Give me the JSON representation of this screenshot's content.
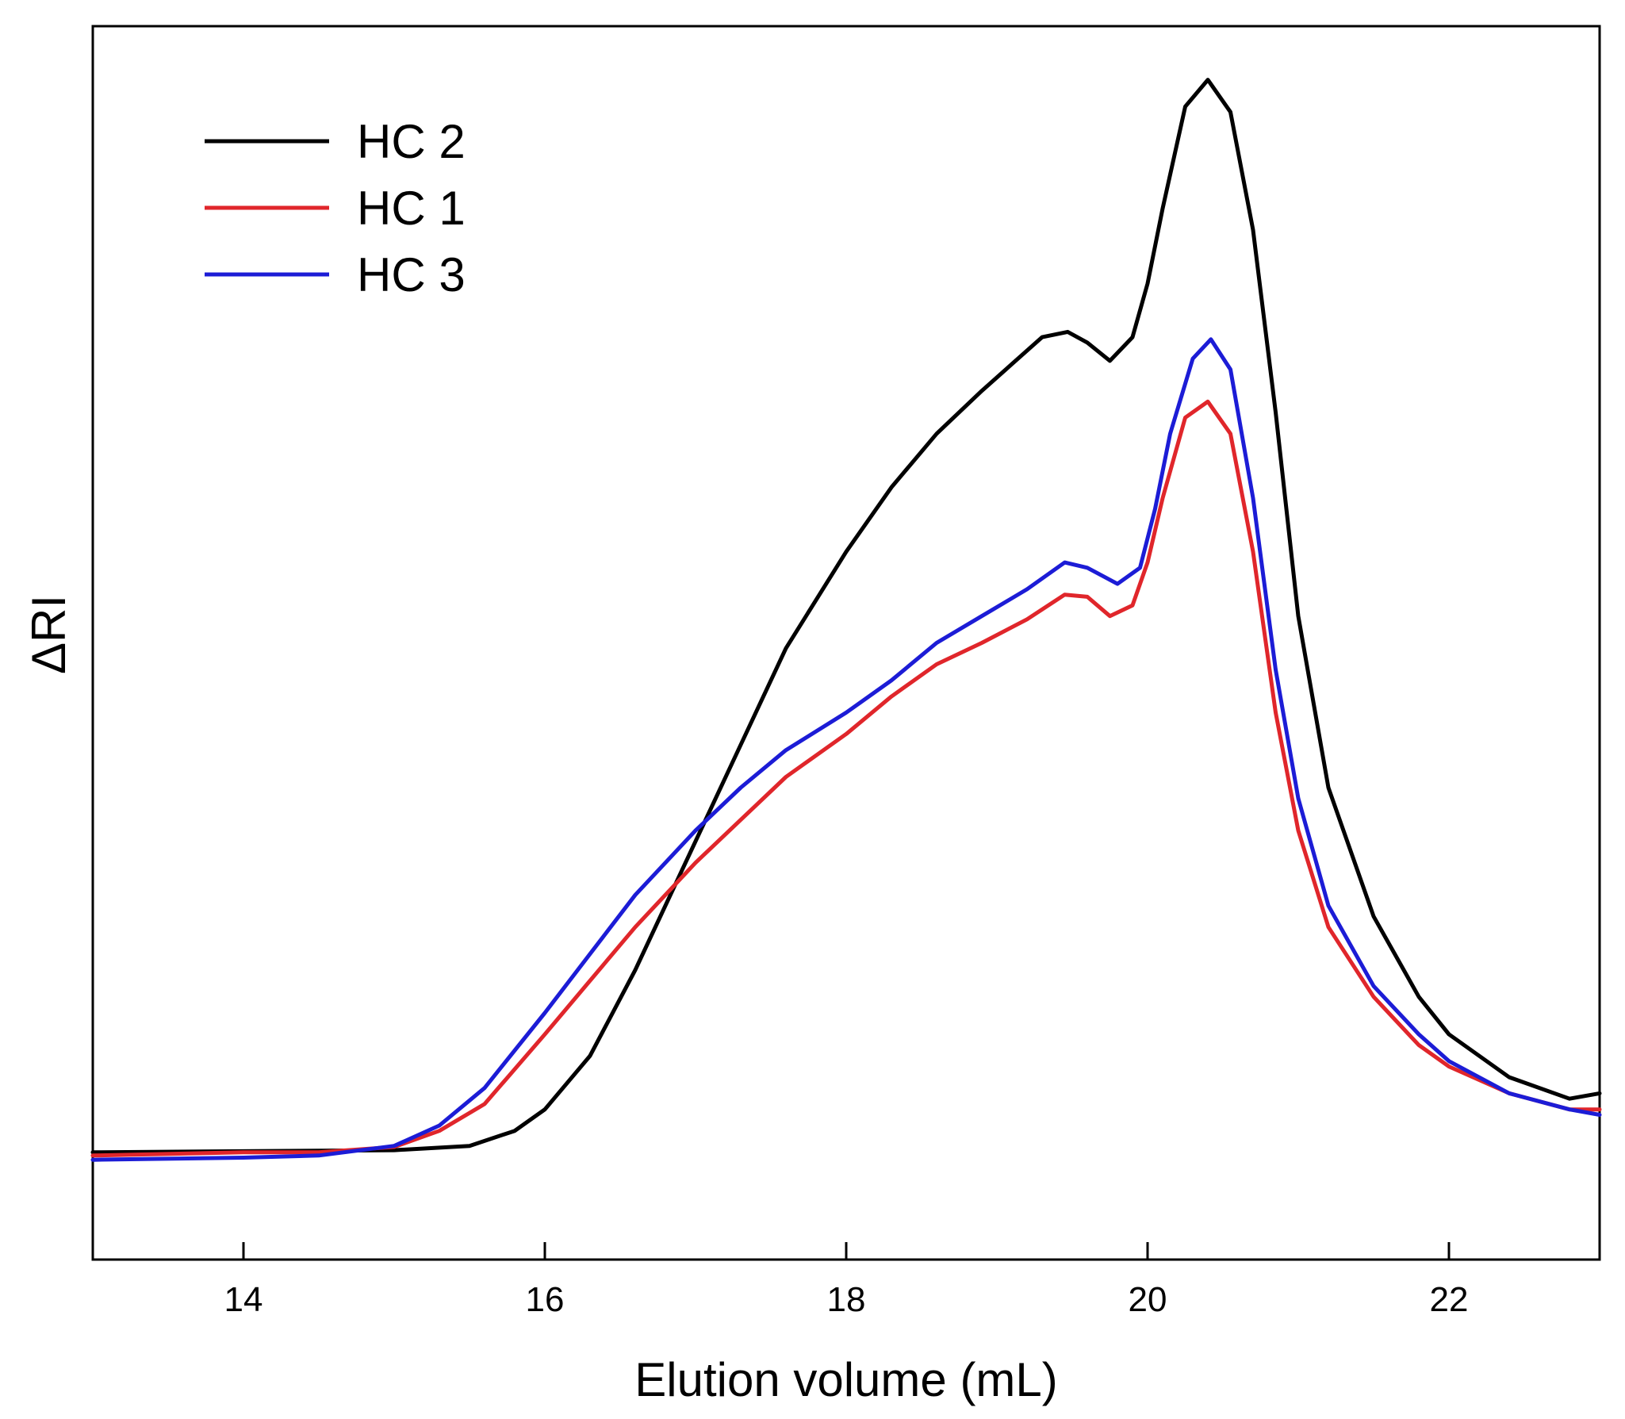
{
  "chart_data": {
    "type": "line",
    "title": "",
    "xlabel": "Elution volume (mL)",
    "ylabel": "ΔRI",
    "xlim": [
      13,
      23
    ],
    "ylim": [
      -0.1,
      1.05
    ],
    "xticks": [
      14,
      16,
      18,
      20,
      22
    ],
    "xtick_labels": [
      "14",
      "16",
      "18",
      "20",
      "22"
    ],
    "yticks": [],
    "grid": false,
    "legend_position": "top-left",
    "series": [
      {
        "name": "HC 2",
        "color": "#000000",
        "points": [
          [
            13.0,
            0.0
          ],
          [
            14.0,
            0.001
          ],
          [
            15.0,
            0.002
          ],
          [
            15.5,
            0.006
          ],
          [
            15.8,
            0.02
          ],
          [
            16.0,
            0.04
          ],
          [
            16.3,
            0.09
          ],
          [
            16.6,
            0.17
          ],
          [
            17.0,
            0.29
          ],
          [
            17.3,
            0.38
          ],
          [
            17.6,
            0.47
          ],
          [
            18.0,
            0.56
          ],
          [
            18.3,
            0.62
          ],
          [
            18.6,
            0.67
          ],
          [
            18.9,
            0.71
          ],
          [
            19.1,
            0.735
          ],
          [
            19.3,
            0.76
          ],
          [
            19.47,
            0.765
          ],
          [
            19.6,
            0.755
          ],
          [
            19.75,
            0.738
          ],
          [
            19.9,
            0.76
          ],
          [
            20.0,
            0.81
          ],
          [
            20.1,
            0.88
          ],
          [
            20.25,
            0.975
          ],
          [
            20.4,
            1.0
          ],
          [
            20.55,
            0.97
          ],
          [
            20.7,
            0.86
          ],
          [
            20.85,
            0.69
          ],
          [
            21.0,
            0.5
          ],
          [
            21.2,
            0.34
          ],
          [
            21.5,
            0.22
          ],
          [
            21.8,
            0.145
          ],
          [
            22.0,
            0.11
          ],
          [
            22.4,
            0.07
          ],
          [
            22.8,
            0.05
          ],
          [
            23.0,
            0.055
          ]
        ]
      },
      {
        "name": "HC 1",
        "color": "#e0262b",
        "points": [
          [
            13.0,
            -0.003
          ],
          [
            14.0,
            0.0
          ],
          [
            14.5,
            0.0
          ],
          [
            15.0,
            0.005
          ],
          [
            15.3,
            0.02
          ],
          [
            15.6,
            0.045
          ],
          [
            16.0,
            0.11
          ],
          [
            16.3,
            0.16
          ],
          [
            16.6,
            0.21
          ],
          [
            17.0,
            0.27
          ],
          [
            17.3,
            0.31
          ],
          [
            17.6,
            0.35
          ],
          [
            18.0,
            0.39
          ],
          [
            18.3,
            0.425
          ],
          [
            18.6,
            0.455
          ],
          [
            18.9,
            0.475
          ],
          [
            19.2,
            0.497
          ],
          [
            19.45,
            0.52
          ],
          [
            19.6,
            0.518
          ],
          [
            19.75,
            0.5
          ],
          [
            19.9,
            0.51
          ],
          [
            20.0,
            0.55
          ],
          [
            20.1,
            0.61
          ],
          [
            20.25,
            0.685
          ],
          [
            20.4,
            0.7
          ],
          [
            20.55,
            0.67
          ],
          [
            20.7,
            0.56
          ],
          [
            20.85,
            0.41
          ],
          [
            21.0,
            0.3
          ],
          [
            21.2,
            0.21
          ],
          [
            21.5,
            0.145
          ],
          [
            21.8,
            0.1
          ],
          [
            22.0,
            0.08
          ],
          [
            22.4,
            0.055
          ],
          [
            22.8,
            0.04
          ],
          [
            23.0,
            0.04
          ]
        ]
      },
      {
        "name": "HC 3",
        "color": "#1c1cd6",
        "points": [
          [
            13.0,
            -0.007
          ],
          [
            14.0,
            -0.005
          ],
          [
            14.5,
            -0.003
          ],
          [
            15.0,
            0.006
          ],
          [
            15.3,
            0.025
          ],
          [
            15.6,
            0.06
          ],
          [
            16.0,
            0.13
          ],
          [
            16.3,
            0.185
          ],
          [
            16.6,
            0.24
          ],
          [
            17.0,
            0.3
          ],
          [
            17.3,
            0.34
          ],
          [
            17.6,
            0.375
          ],
          [
            18.0,
            0.41
          ],
          [
            18.3,
            0.44
          ],
          [
            18.6,
            0.475
          ],
          [
            18.9,
            0.5
          ],
          [
            19.2,
            0.525
          ],
          [
            19.45,
            0.55
          ],
          [
            19.6,
            0.545
          ],
          [
            19.8,
            0.53
          ],
          [
            19.95,
            0.545
          ],
          [
            20.05,
            0.6
          ],
          [
            20.15,
            0.67
          ],
          [
            20.3,
            0.74
          ],
          [
            20.42,
            0.758
          ],
          [
            20.55,
            0.73
          ],
          [
            20.7,
            0.61
          ],
          [
            20.85,
            0.45
          ],
          [
            21.0,
            0.33
          ],
          [
            21.2,
            0.23
          ],
          [
            21.5,
            0.155
          ],
          [
            21.8,
            0.11
          ],
          [
            22.0,
            0.085
          ],
          [
            22.4,
            0.055
          ],
          [
            22.8,
            0.04
          ],
          [
            23.0,
            0.035
          ]
        ]
      }
    ]
  }
}
